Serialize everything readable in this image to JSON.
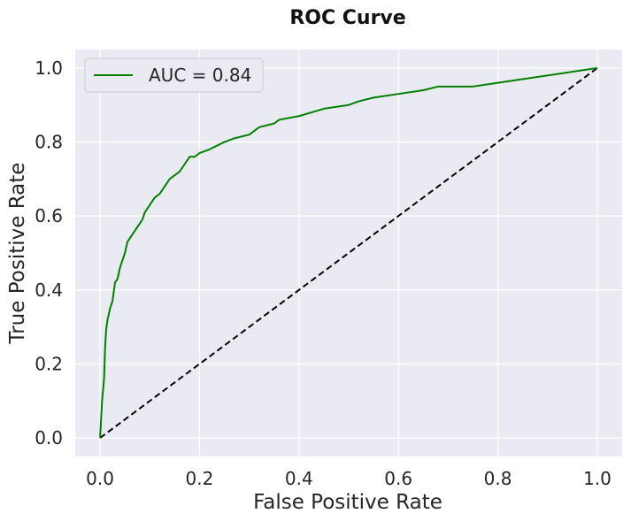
{
  "chart_data": {
    "type": "line",
    "title": "ROC Curve",
    "xlabel": "False Positive Rate",
    "ylabel": "True Positive Rate",
    "xlim": [
      -0.05,
      1.05
    ],
    "ylim": [
      -0.05,
      1.05
    ],
    "xticks": [
      "0.0",
      "0.2",
      "0.4",
      "0.6",
      "0.8",
      "1.0"
    ],
    "yticks": [
      "0.0",
      "0.2",
      "0.4",
      "0.6",
      "0.8",
      "1.0"
    ],
    "grid": true,
    "legend_position": "top-left",
    "series": [
      {
        "name": "AUC = 0.84",
        "color": "#008000",
        "style": "solid",
        "x": [
          0.0,
          0.004,
          0.008,
          0.01,
          0.012,
          0.015,
          0.02,
          0.025,
          0.03,
          0.035,
          0.04,
          0.045,
          0.05,
          0.055,
          0.06,
          0.065,
          0.07,
          0.075,
          0.08,
          0.085,
          0.09,
          0.1,
          0.11,
          0.12,
          0.13,
          0.14,
          0.15,
          0.16,
          0.17,
          0.18,
          0.19,
          0.2,
          0.22,
          0.25,
          0.27,
          0.3,
          0.32,
          0.35,
          0.36,
          0.4,
          0.45,
          0.5,
          0.52,
          0.55,
          0.6,
          0.65,
          0.68,
          0.7,
          0.75,
          0.8,
          1.0
        ],
        "y": [
          0.0,
          0.1,
          0.16,
          0.24,
          0.29,
          0.32,
          0.35,
          0.37,
          0.42,
          0.43,
          0.46,
          0.48,
          0.5,
          0.53,
          0.54,
          0.55,
          0.56,
          0.57,
          0.58,
          0.59,
          0.61,
          0.63,
          0.65,
          0.66,
          0.68,
          0.7,
          0.71,
          0.72,
          0.74,
          0.76,
          0.76,
          0.77,
          0.78,
          0.8,
          0.81,
          0.82,
          0.84,
          0.85,
          0.86,
          0.87,
          0.89,
          0.9,
          0.91,
          0.92,
          0.93,
          0.94,
          0.95,
          0.95,
          0.95,
          0.96,
          1.0
        ]
      },
      {
        "color": "#000000",
        "style": "dashed",
        "x": [
          0.0,
          1.0
        ],
        "y": [
          0.0,
          1.0
        ]
      }
    ]
  }
}
